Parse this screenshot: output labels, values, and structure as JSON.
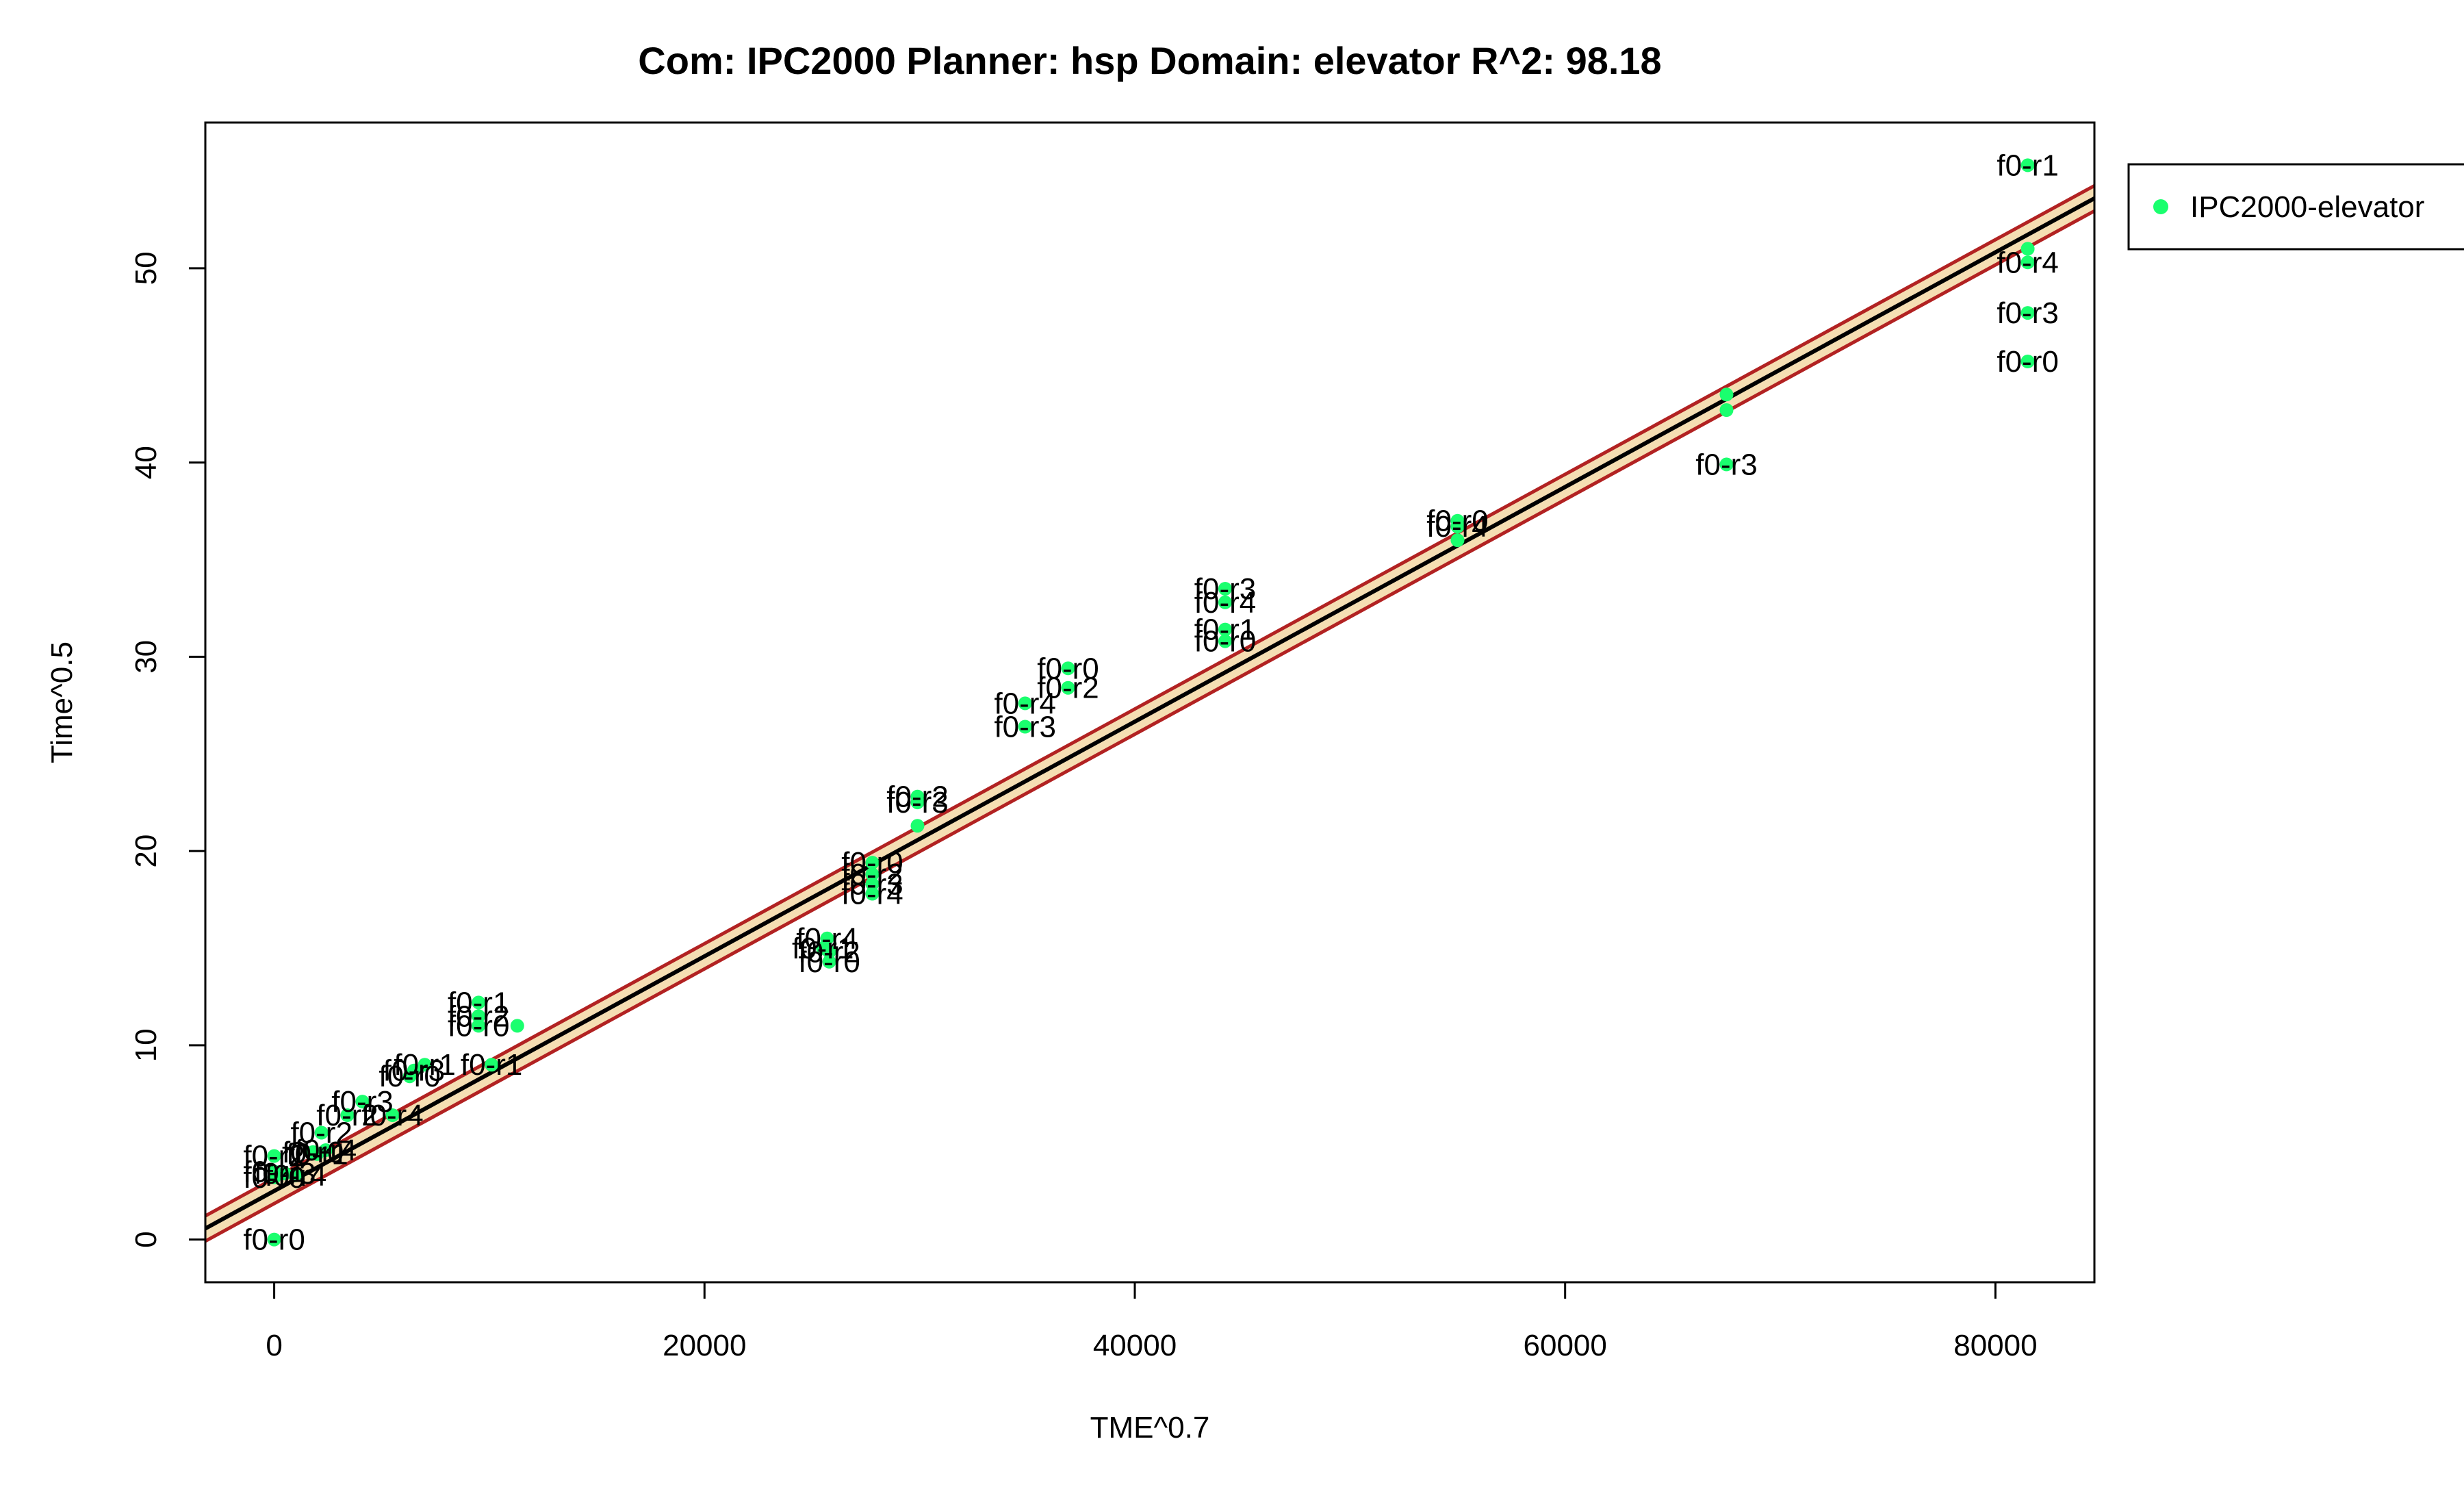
{
  "chart_data": {
    "type": "scatter",
    "title": "Com: IPC2000 Planner: hsp Domain: elevator R^2: 98.18",
    "xlabel": "TME^0.7",
    "ylabel": "Time^0.5",
    "xlim": [
      -3200,
      84600
    ],
    "ylim": [
      -2.2,
      57.5
    ],
    "xticks": [
      0,
      20000,
      40000,
      60000,
      80000
    ],
    "yticks": [
      0,
      10,
      20,
      30,
      40,
      50
    ],
    "grid": false,
    "legend": {
      "position": "top-right-outside",
      "entries": [
        "IPC2000-elevator"
      ]
    },
    "colors": {
      "points": "#1aff6e",
      "fit_line": "#000000",
      "band_line": "#b22222",
      "band_fill": "#f5deb3"
    },
    "fit": {
      "intercept": 2.5,
      "slope": 0.000604,
      "band_halfwidth": 0.65
    },
    "series": [
      {
        "name": "IPC2000-elevator",
        "points": [
          {
            "x": 0,
            "y": 0,
            "label": "f0-r0"
          },
          {
            "x": 0,
            "y": 3.2,
            "label": "f0-r0"
          },
          {
            "x": 0,
            "y": 3.5,
            "label": "f0-r1"
          },
          {
            "x": 0,
            "y": 4.3,
            "label": "f0-r2"
          },
          {
            "x": 500,
            "y": 3.4,
            "label": "f0-r3"
          },
          {
            "x": 1000,
            "y": 3.3,
            "label": "f0-r4"
          },
          {
            "x": 1800,
            "y": 4.5,
            "label": "f0-r0"
          },
          {
            "x": 2000,
            "y": 4.4,
            "label": "f0-r1"
          },
          {
            "x": 2200,
            "y": 5.5,
            "label": "f0-r2"
          },
          {
            "x": 2400,
            "y": 4.6,
            "label": "f0-r4"
          },
          {
            "x": 3400,
            "y": 6.4,
            "label": "f0-r2"
          },
          {
            "x": 4100,
            "y": 7.1,
            "label": "f0-r3"
          },
          {
            "x": 5500,
            "y": 6.4,
            "label": "f0-r4"
          },
          {
            "x": 6300,
            "y": 8.4,
            "label": "f0-r0"
          },
          {
            "x": 6500,
            "y": 8.7,
            "label": "f0-r3"
          },
          {
            "x": 7000,
            "y": 9.0,
            "label": "f0-r1"
          },
          {
            "x": 9500,
            "y": 12.2,
            "label": "f0-r1"
          },
          {
            "x": 9500,
            "y": 11.5,
            "label": "f0-r2"
          },
          {
            "x": 9500,
            "y": 11.0,
            "label": "f0-r0"
          },
          {
            "x": 10100,
            "y": 9.0,
            "label": "f0-r1"
          },
          {
            "x": 11300,
            "y": 11.0,
            "label": ""
          },
          {
            "x": 25500,
            "y": 15.0,
            "label": "f0-r1"
          },
          {
            "x": 25700,
            "y": 15.5,
            "label": "f0-r4"
          },
          {
            "x": 25800,
            "y": 14.8,
            "label": "f0-r2"
          },
          {
            "x": 25800,
            "y": 14.3,
            "label": "f0-r0"
          },
          {
            "x": 27800,
            "y": 19.4,
            "label": "f0-r0"
          },
          {
            "x": 27800,
            "y": 18.8,
            "label": "f0-r2"
          },
          {
            "x": 27800,
            "y": 18.3,
            "label": "f0-r3"
          },
          {
            "x": 27800,
            "y": 17.8,
            "label": "f0-r4"
          },
          {
            "x": 29900,
            "y": 22.8,
            "label": "f0-r2"
          },
          {
            "x": 29900,
            "y": 22.5,
            "label": "f0-r3"
          },
          {
            "x": 29900,
            "y": 21.3,
            "label": ""
          },
          {
            "x": 34900,
            "y": 27.6,
            "label": "f0-r4"
          },
          {
            "x": 34900,
            "y": 26.4,
            "label": "f0-r3"
          },
          {
            "x": 36900,
            "y": 29.4,
            "label": "f0-r0"
          },
          {
            "x": 36900,
            "y": 28.4,
            "label": "f0-r2"
          },
          {
            "x": 44200,
            "y": 33.5,
            "label": "f0-r3"
          },
          {
            "x": 44200,
            "y": 32.8,
            "label": "f0-r4"
          },
          {
            "x": 44200,
            "y": 31.4,
            "label": "f0-r1"
          },
          {
            "x": 44200,
            "y": 30.8,
            "label": "f0-r0"
          },
          {
            "x": 55000,
            "y": 37.0,
            "label": "f0-r0"
          },
          {
            "x": 55000,
            "y": 36.7,
            "label": "f0-r4"
          },
          {
            "x": 55000,
            "y": 36.0,
            "label": ""
          },
          {
            "x": 67500,
            "y": 43.5,
            "label": ""
          },
          {
            "x": 67500,
            "y": 42.7,
            "label": ""
          },
          {
            "x": 67500,
            "y": 39.9,
            "label": "f0-r3"
          },
          {
            "x": 81500,
            "y": 55.3,
            "label": "f0-r1"
          },
          {
            "x": 81500,
            "y": 51.0,
            "label": ""
          },
          {
            "x": 81500,
            "y": 50.3,
            "label": "f0-r4"
          },
          {
            "x": 81500,
            "y": 47.7,
            "label": "f0-r3"
          },
          {
            "x": 81500,
            "y": 45.2,
            "label": "f0-r0"
          }
        ]
      }
    ]
  }
}
